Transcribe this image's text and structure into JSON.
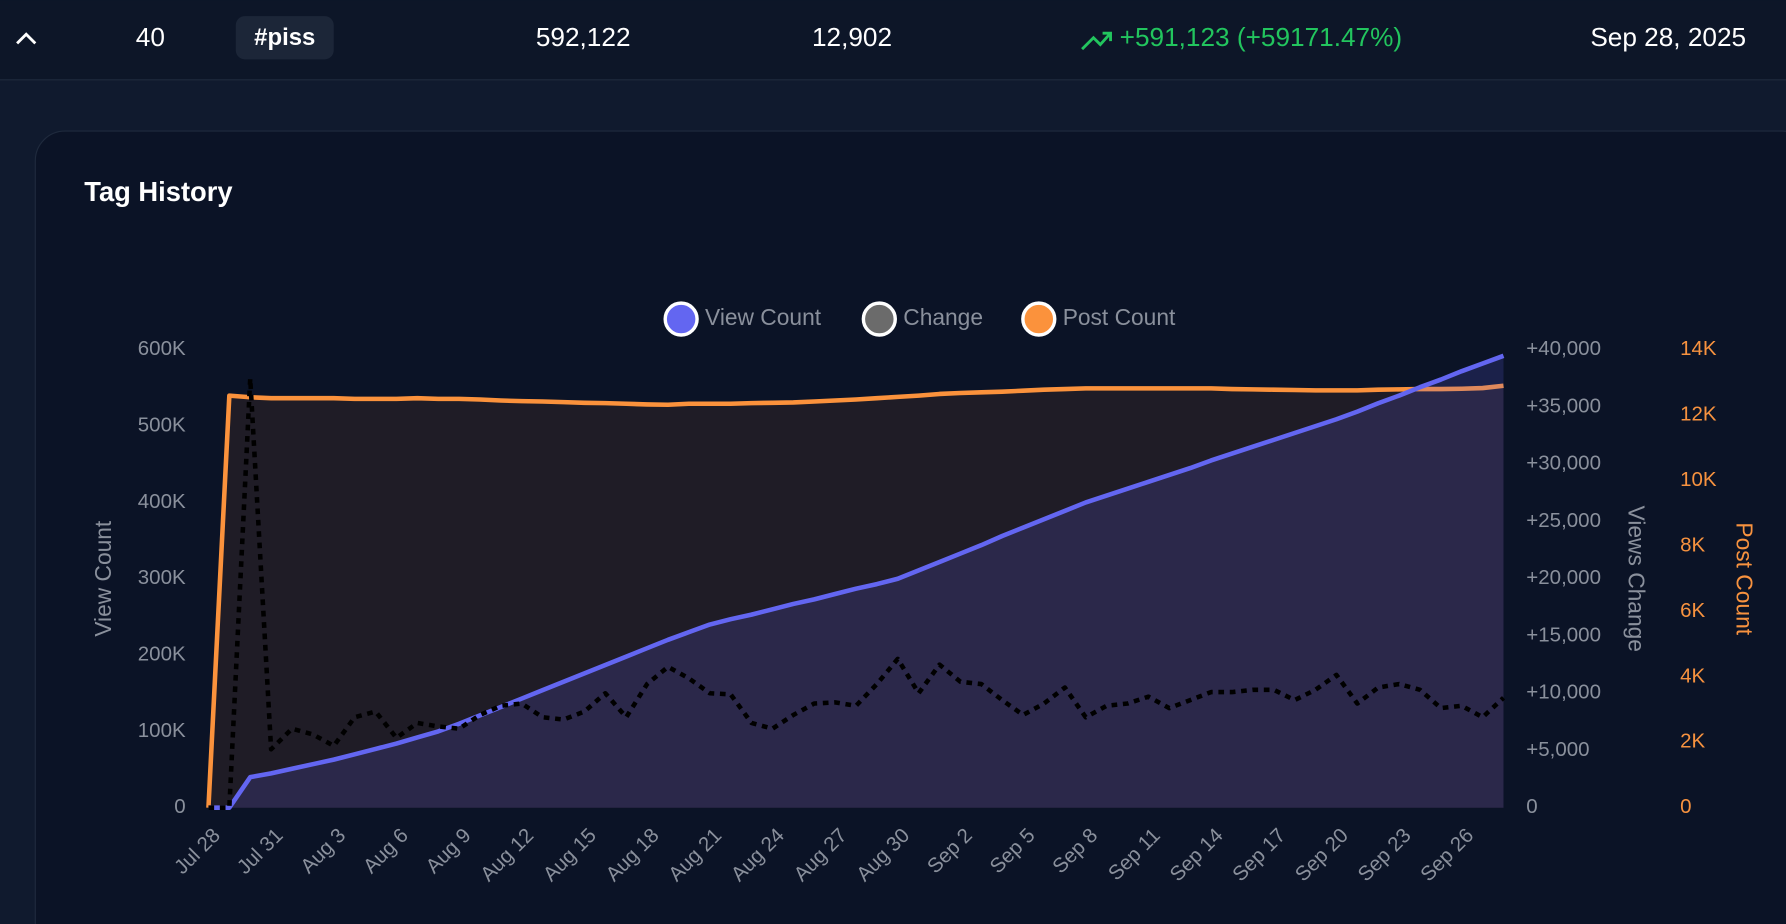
{
  "row": {
    "rank": "40",
    "tag": "#piss",
    "views": "592,122",
    "posts": "12,902",
    "change": "+591,123 (+59171.47%)",
    "date": "Sep 28, 2025"
  },
  "chart_data": {
    "type": "line",
    "title": "Tag History",
    "ylabel": "View Count",
    "y2label": "Views Change",
    "y3label": "Post Count",
    "categories": [
      "Jul 28",
      null,
      null,
      "Jul 31",
      null,
      null,
      "Aug 3",
      null,
      null,
      "Aug 6",
      null,
      null,
      "Aug 9",
      null,
      null,
      "Aug 12",
      null,
      null,
      "Aug 15",
      null,
      null,
      "Aug 18",
      null,
      null,
      "Aug 21",
      null,
      null,
      "Aug 24",
      null,
      null,
      "Aug 27",
      null,
      null,
      "Aug 30",
      null,
      null,
      "Sep 2",
      null,
      null,
      "Sep 5",
      null,
      null,
      "Sep 8",
      null,
      null,
      "Sep 11",
      null,
      null,
      "Sep 14",
      null,
      null,
      "Sep 17",
      null,
      null,
      "Sep 20",
      null,
      null,
      "Sep 23",
      null,
      null,
      "Sep 26",
      null,
      null
    ],
    "series": [
      {
        "name": "View Count",
        "color": "#6366f1",
        "axis": "y",
        "values": [
          0,
          0,
          40000,
          45000,
          51000,
          57000,
          63000,
          70000,
          77000,
          84000,
          92000,
          100000,
          110000,
          121000,
          132000,
          143000,
          154000,
          165000,
          176000,
          187000,
          198000,
          209000,
          220000,
          230000,
          240000,
          247000,
          253000,
          260000,
          267000,
          273000,
          280000,
          287000,
          293000,
          300000,
          311000,
          322000,
          333000,
          344000,
          356000,
          367000,
          378000,
          389000,
          400000,
          409000,
          418000,
          427000,
          436000,
          445000,
          455000,
          464000,
          473000,
          482000,
          491000,
          500000,
          509000,
          519000,
          530000,
          540000,
          551000,
          561000,
          572000,
          582000,
          592122
        ]
      },
      {
        "name": "Change",
        "color": "#6b6b6b",
        "axis": "y2",
        "values": [
          0,
          0,
          37500,
          5100,
          6900,
          6400,
          5400,
          7900,
          8400,
          6100,
          7400,
          7100,
          6900,
          8100,
          8900,
          9100,
          7900,
          7700,
          8400,
          10000,
          7900,
          10800,
          12300,
          11300,
          10000,
          9900,
          7400,
          6900,
          8100,
          9100,
          9200,
          8900,
          10800,
          13000,
          10000,
          12500,
          11000,
          10800,
          9400,
          8100,
          9100,
          10500,
          7900,
          8900,
          9100,
          9700,
          8700,
          9400,
          10100,
          10100,
          10300,
          10300,
          9400,
          10300,
          11600,
          9100,
          10500,
          10800,
          10300,
          8700,
          8900,
          7900,
          9600
        ]
      },
      {
        "name": "Post Count",
        "color": "#fb923c",
        "axis": "y3",
        "values": [
          0,
          12600,
          12550,
          12520,
          12520,
          12520,
          12520,
          12500,
          12500,
          12500,
          12520,
          12500,
          12500,
          12480,
          12450,
          12430,
          12420,
          12400,
          12380,
          12370,
          12350,
          12330,
          12320,
          12350,
          12350,
          12350,
          12370,
          12380,
          12390,
          12420,
          12450,
          12480,
          12520,
          12560,
          12600,
          12650,
          12680,
          12700,
          12720,
          12750,
          12780,
          12800,
          12820,
          12820,
          12820,
          12820,
          12820,
          12820,
          12820,
          12800,
          12790,
          12780,
          12770,
          12760,
          12760,
          12760,
          12780,
          12790,
          12800,
          12800,
          12810,
          12830,
          12902
        ]
      }
    ],
    "ylim": [
      0,
      600000
    ],
    "yticks": [
      0,
      {
        "value": 100000,
        "label": "100K"
      },
      {
        "value": 200000,
        "label": "200K"
      },
      {
        "value": 300000,
        "label": "300K"
      },
      {
        "value": 400000,
        "label": "400K"
      },
      {
        "value": 500000,
        "label": "500K"
      },
      {
        "value": 600000,
        "label": "600K"
      }
    ],
    "y2lim": [
      0,
      40000
    ],
    "y2ticks": [
      0,
      {
        "value": 5000,
        "label": "+5,000"
      },
      {
        "value": 10000,
        "label": "+10,000"
      },
      {
        "value": 15000,
        "label": "+15,000"
      },
      {
        "value": 20000,
        "label": "+20,000"
      },
      {
        "value": 25000,
        "label": "+25,000"
      },
      {
        "value": 30000,
        "label": "+30,000"
      },
      {
        "value": 35000,
        "label": "+35,000"
      },
      {
        "value": 40000,
        "label": "+40,000"
      }
    ],
    "y3lim": [
      0,
      14000
    ],
    "y3ticks": [
      0,
      {
        "value": 2000,
        "label": "2K"
      },
      {
        "value": 4000,
        "label": "4K"
      },
      {
        "value": 6000,
        "label": "6K"
      },
      {
        "value": 8000,
        "label": "8K"
      },
      {
        "value": 10000,
        "label": "10K"
      },
      {
        "value": 12000,
        "label": "12K"
      },
      {
        "value": 14000,
        "label": "14K"
      }
    ],
    "legend": "top"
  }
}
